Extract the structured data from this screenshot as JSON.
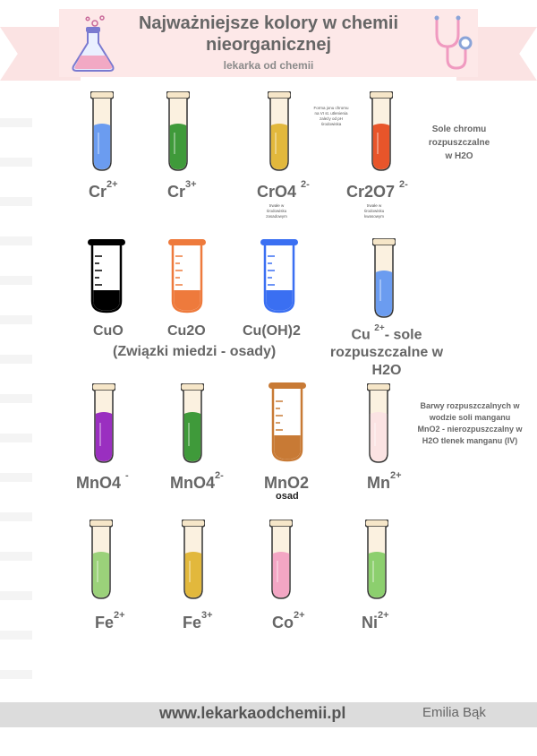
{
  "header": {
    "title_line1": "Najważniejsze kolory w chemii",
    "title_line2": "nieorganicznej",
    "subtitle": "lekarka od chemii"
  },
  "row1": {
    "labels": [
      {
        "base": "Cr",
        "sup": "2+"
      },
      {
        "base": "Cr",
        "sup": "3+"
      },
      {
        "base": "CrO4",
        "sup": "2-"
      },
      {
        "base": "Cr2O7",
        "sup": "2-"
      }
    ],
    "tiny_note_top": [
      "Forma jonu chromu",
      "na VI st. utlenienia",
      "zależy od pH",
      "środowiska"
    ],
    "tiny_note_cro4": [
      "trwałe w",
      "środowisku",
      "zasadowym"
    ],
    "tiny_note_cr2o7": [
      "trwałe w",
      "środowisku",
      "kwasowym"
    ],
    "side_note": [
      "Sole chromu",
      "rozpuszczalne",
      "w H2O"
    ],
    "colors": [
      "#6b9cf0",
      "#3f9a3a",
      "#e2b83c",
      "#e8552a"
    ]
  },
  "row2": {
    "labels": [
      "CuO",
      "Cu2O",
      "Cu(OH)2"
    ],
    "caption": "(Związki miedzi - osady)",
    "cu_label": {
      "base": "Cu",
      "sup": "2+",
      "rest": "- sole",
      "line2": "rozpuszczalne w",
      "line3": "H2O"
    },
    "colors": [
      "#000000",
      "#ee7a3c",
      "#3a6ff2",
      "#6b9cf0"
    ]
  },
  "row3": {
    "labels": [
      {
        "base": "MnO4",
        "sup": "-"
      },
      {
        "base": "MnO4",
        "sup": "2-"
      },
      {
        "base": "MnO2",
        "sup": ""
      },
      {
        "base": "Mn",
        "sup": "2+"
      }
    ],
    "osad": "osad",
    "side_note": [
      "Barwy rozpuszczalnych w",
      "wodzie soli manganu",
      "MnO2 - nierozpuszczalny w",
      "H2O tlenek manganu (IV)"
    ],
    "colors": [
      "#9a2fc0",
      "#3f9a3a",
      "#c87a35",
      "#fbe3e3"
    ]
  },
  "row4": {
    "labels": [
      {
        "base": "Fe",
        "sup": "2+"
      },
      {
        "base": "Fe",
        "sup": "3+"
      },
      {
        "base": "Co",
        "sup": "2+"
      },
      {
        "base": "Ni",
        "sup": "2+"
      }
    ],
    "colors": [
      "#9bd17a",
      "#e2b83c",
      "#f3a6c4",
      "#8ccf6e"
    ]
  },
  "footer": {
    "url": "www.lekarkaodchemii.pl",
    "author": "Emilia Bąk"
  }
}
